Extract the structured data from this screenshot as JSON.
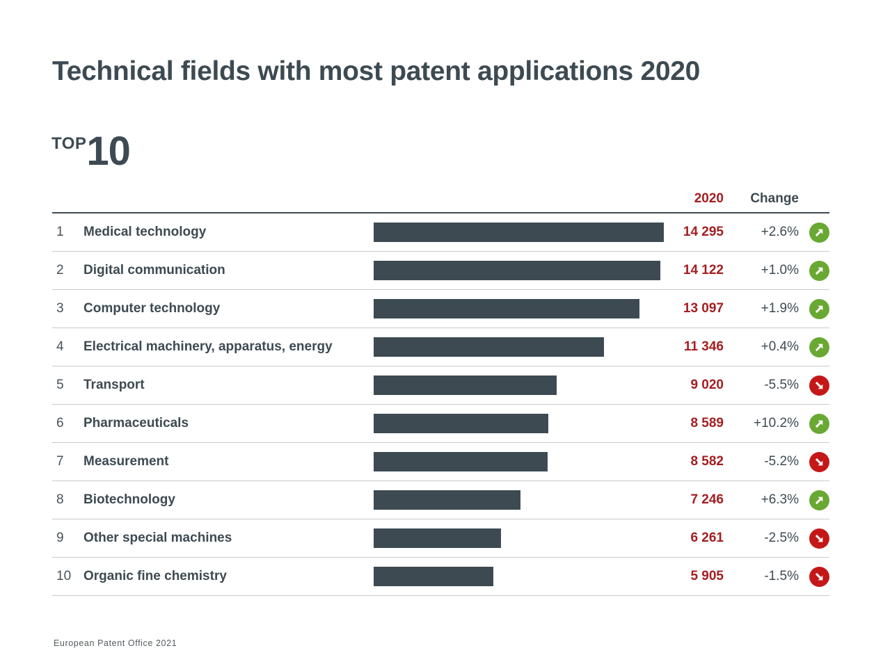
{
  "title": "Technical fields with most patent applications 2020",
  "top_badge": {
    "word": "TOP",
    "number": "10"
  },
  "table_header": {
    "year_col": "2020",
    "change_col": "Change"
  },
  "footer": "European Patent Office 2021",
  "colors": {
    "text_dark": "#3d4a52",
    "bar": "#3d4a52",
    "value_red": "#a41e21",
    "trend_up_green": "#69a832",
    "trend_down_red": "#c51718",
    "row_divider": "#c9c9c9"
  },
  "rows": [
    {
      "rank": "1",
      "label": "Medical technology",
      "value": 14295,
      "value_label": "14 295",
      "change": "+2.6%",
      "direction": "up"
    },
    {
      "rank": "2",
      "label": "Digital communication",
      "value": 14122,
      "value_label": "14 122",
      "change": "+1.0%",
      "direction": "up"
    },
    {
      "rank": "3",
      "label": "Computer technology",
      "value": 13097,
      "value_label": "13 097",
      "change": "+1.9%",
      "direction": "up"
    },
    {
      "rank": "4",
      "label": "Electrical machinery, apparatus, energy",
      "value": 11346,
      "value_label": "11 346",
      "change": "+0.4%",
      "direction": "up"
    },
    {
      "rank": "5",
      "label": "Transport",
      "value": 9020,
      "value_label": "9 020",
      "change": "-5.5%",
      "direction": "down"
    },
    {
      "rank": "6",
      "label": "Pharmaceuticals",
      "value": 8589,
      "value_label": "8 589",
      "change": "+10.2%",
      "direction": "up"
    },
    {
      "rank": "7",
      "label": "Measurement",
      "value": 8582,
      "value_label": "8 582",
      "change": "-5.2%",
      "direction": "down"
    },
    {
      "rank": "8",
      "label": "Biotechnology",
      "value": 7246,
      "value_label": "7 246",
      "change": "+6.3%",
      "direction": "up"
    },
    {
      "rank": "9",
      "label": "Other special machines",
      "value": 6261,
      "value_label": "6 261",
      "change": "-2.5%",
      "direction": "down"
    },
    {
      "rank": "10",
      "label": "Organic fine chemistry",
      "value": 5905,
      "value_label": "5 905",
      "change": "-1.5%",
      "direction": "down"
    }
  ],
  "chart_data": {
    "type": "bar",
    "orientation": "horizontal",
    "title": "Technical fields with most patent applications 2020",
    "subtitle": "TOP 10",
    "categories": [
      "Medical technology",
      "Digital communication",
      "Computer technology",
      "Electrical machinery, apparatus, energy",
      "Transport",
      "Pharmaceuticals",
      "Measurement",
      "Biotechnology",
      "Other special machines",
      "Organic fine chemistry"
    ],
    "values": [
      14295,
      14122,
      13097,
      11346,
      9020,
      8589,
      8582,
      7246,
      6261,
      5905
    ],
    "value_labels": [
      "14 295",
      "14 122",
      "13 097",
      "11 346",
      "9 020",
      "8 589",
      "8 582",
      "7 246",
      "6 261",
      "5 905"
    ],
    "change_percent": [
      2.6,
      1.0,
      1.9,
      0.4,
      -5.5,
      10.2,
      -5.2,
      6.3,
      -2.5,
      -1.5
    ],
    "change_labels": [
      "+2.6%",
      "+1.0%",
      "+1.9%",
      "+0.4%",
      "-5.5%",
      "+10.2%",
      "-5.2%",
      "+6.3%",
      "-2.5%",
      "-1.5%"
    ],
    "column_headers": [
      "2020",
      "Change"
    ],
    "xlabel": "",
    "ylabel": "",
    "xlim": [
      0,
      14295
    ],
    "grid": false,
    "legend": false,
    "source": "European Patent Office 2021"
  }
}
